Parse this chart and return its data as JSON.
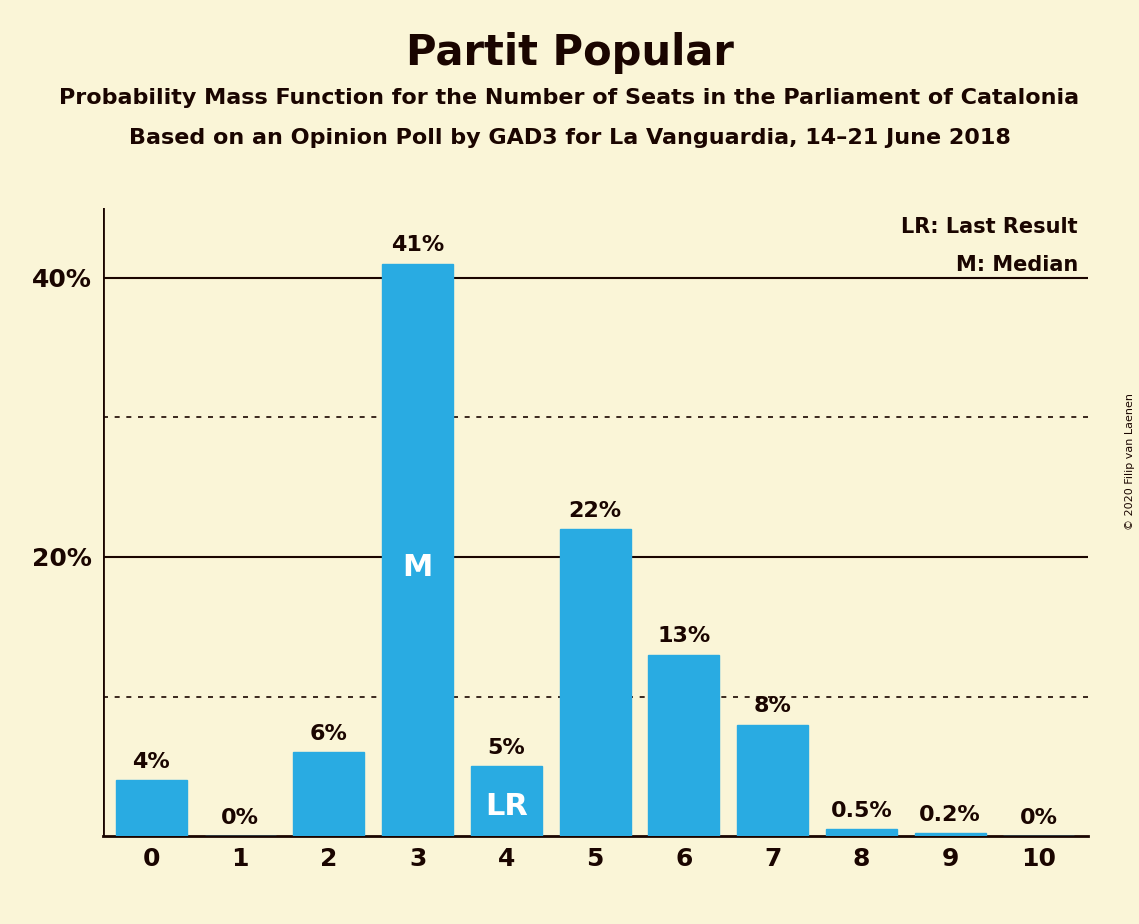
{
  "title": "Partit Popular",
  "subtitle1": "Probability Mass Function for the Number of Seats in the Parliament of Catalonia",
  "subtitle2": "Based on an Opinion Poll by GAD3 for La Vanguardia, 14–21 June 2018",
  "copyright": "© 2020 Filip van Laenen",
  "categories": [
    0,
    1,
    2,
    3,
    4,
    5,
    6,
    7,
    8,
    9,
    10
  ],
  "values": [
    4,
    0,
    6,
    41,
    5,
    22,
    13,
    8,
    0.5,
    0.2,
    0
  ],
  "bar_color": "#29ABE2",
  "background_color": "#FAF5D7",
  "text_color": "#1A0500",
  "bar_labels": [
    "4%",
    "0%",
    "6%",
    "41%",
    "5%",
    "22%",
    "13%",
    "8%",
    "0.5%",
    "0.2%",
    "0%"
  ],
  "median_bar": 3,
  "lr_bar": 4,
  "median_label": "M",
  "lr_label": "LR",
  "legend_lr": "LR: Last Result",
  "legend_m": "M: Median",
  "ylim": [
    0,
    45
  ],
  "yticks": [
    20,
    40
  ],
  "ytick_labels": [
    "20%",
    "40%"
  ],
  "dotted_gridlines": [
    10,
    30
  ],
  "solid_gridlines": [
    20,
    40
  ],
  "title_fontsize": 30,
  "subtitle_fontsize": 16,
  "tick_fontsize": 18,
  "legend_fontsize": 15,
  "bar_label_fontsize": 16,
  "inside_label_fontsize": 22,
  "copyright_fontsize": 8
}
